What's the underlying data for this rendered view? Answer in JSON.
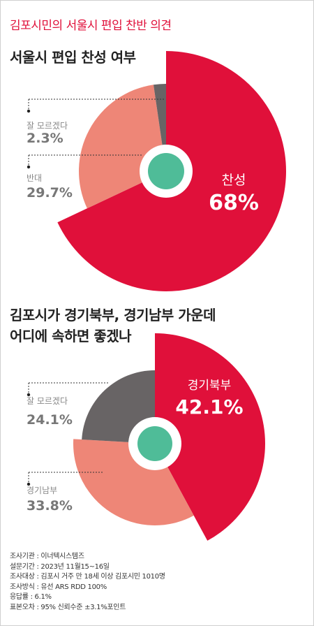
{
  "header": "김포시민의 서울시 편입 찬반 의견",
  "colors": {
    "accent": "#e0103a",
    "salmon": "#ee8677",
    "gray": "#686465",
    "center": "#4fbc98"
  },
  "chart_data": [
    {
      "type": "pie",
      "title": "서울시 편입 찬성 여부",
      "slices": [
        {
          "label": "찬성",
          "value": 68,
          "display": "68%",
          "color": "#e0103a"
        },
        {
          "label": "반대",
          "value": 29.7,
          "display": "29.7%",
          "color": "#ee8677"
        },
        {
          "label": "잘 모르겠다",
          "value": 2.3,
          "display": "2.3%",
          "color": "#686465"
        }
      ]
    },
    {
      "type": "pie",
      "title_lines": [
        "김포시가 경기북부, 경기남부 가운데",
        "어디에 속하면 좋겠나"
      ],
      "slices": [
        {
          "label": "경기북부",
          "value": 42.1,
          "display": "42.1%",
          "color": "#e0103a"
        },
        {
          "label": "경기남부",
          "value": 33.8,
          "display": "33.8%",
          "color": "#ee8677"
        },
        {
          "label": "잘 모르겠다",
          "value": 24.1,
          "display": "24.1%",
          "color": "#686465"
        }
      ]
    }
  ],
  "source": [
    "조사기관 : 이너텍시스템즈",
    "설문기간 : 2023년 11월15~16일",
    "조사대상 : 김포시 거주 만 18세 이상 김포시민 1010명",
    "조사방식 : 유선 ARS RDD 100%",
    "응답률 : 6.1%",
    "표본오차 : 95% 신뢰수준 ±3.1%포인트"
  ]
}
